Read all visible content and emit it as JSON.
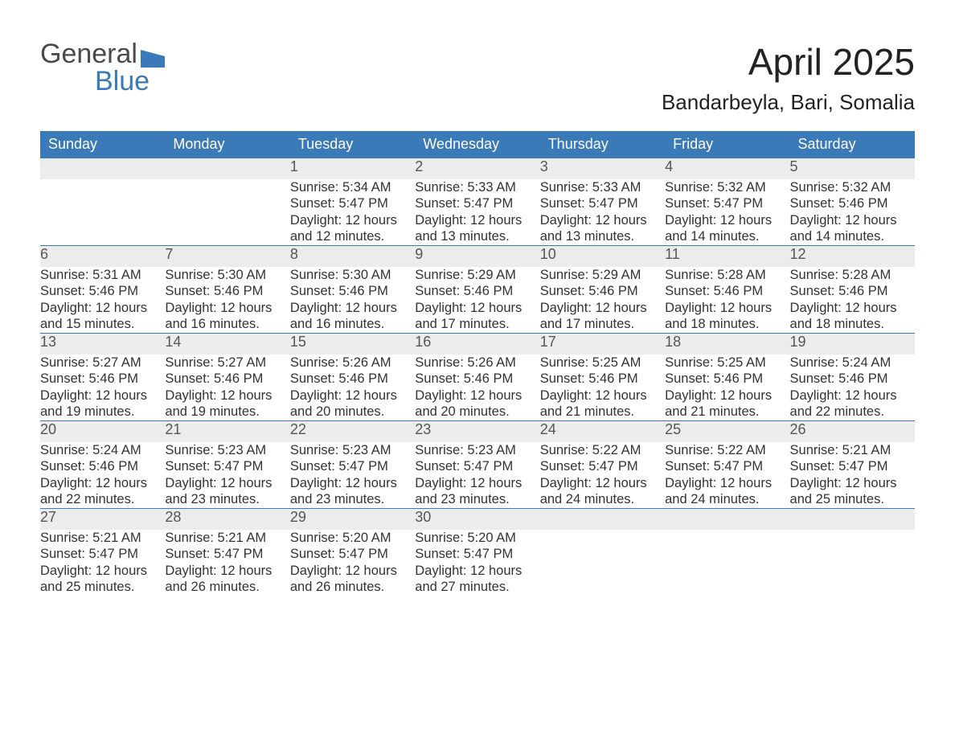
{
  "logo": {
    "word1": "General",
    "word2": "Blue",
    "accent_color": "#3a7ab8",
    "text_color": "#4a4a4a"
  },
  "title": "April 2025",
  "location": "Bandarbeyla, Bari, Somalia",
  "colors": {
    "header_bg": "#3a7ab8",
    "header_text": "#ffffff",
    "daynum_bg": "#ececec",
    "daynum_border": "#3a7ab8",
    "body_text": "#333333",
    "page_bg": "#ffffff"
  },
  "fonts": {
    "title_size_pt": 34,
    "subtitle_size_pt": 20,
    "header_size_pt": 14,
    "body_size_pt": 12
  },
  "columns": [
    "Sunday",
    "Monday",
    "Tuesday",
    "Wednesday",
    "Thursday",
    "Friday",
    "Saturday"
  ],
  "weeks": [
    [
      {
        "day": "",
        "sunrise": "",
        "sunset": "",
        "daylight": ""
      },
      {
        "day": "",
        "sunrise": "",
        "sunset": "",
        "daylight": ""
      },
      {
        "day": "1",
        "sunrise": "Sunrise: 5:34 AM",
        "sunset": "Sunset: 5:47 PM",
        "daylight": "Daylight: 12 hours and 12 minutes."
      },
      {
        "day": "2",
        "sunrise": "Sunrise: 5:33 AM",
        "sunset": "Sunset: 5:47 PM",
        "daylight": "Daylight: 12 hours and 13 minutes."
      },
      {
        "day": "3",
        "sunrise": "Sunrise: 5:33 AM",
        "sunset": "Sunset: 5:47 PM",
        "daylight": "Daylight: 12 hours and 13 minutes."
      },
      {
        "day": "4",
        "sunrise": "Sunrise: 5:32 AM",
        "sunset": "Sunset: 5:47 PM",
        "daylight": "Daylight: 12 hours and 14 minutes."
      },
      {
        "day": "5",
        "sunrise": "Sunrise: 5:32 AM",
        "sunset": "Sunset: 5:46 PM",
        "daylight": "Daylight: 12 hours and 14 minutes."
      }
    ],
    [
      {
        "day": "6",
        "sunrise": "Sunrise: 5:31 AM",
        "sunset": "Sunset: 5:46 PM",
        "daylight": "Daylight: 12 hours and 15 minutes."
      },
      {
        "day": "7",
        "sunrise": "Sunrise: 5:30 AM",
        "sunset": "Sunset: 5:46 PM",
        "daylight": "Daylight: 12 hours and 16 minutes."
      },
      {
        "day": "8",
        "sunrise": "Sunrise: 5:30 AM",
        "sunset": "Sunset: 5:46 PM",
        "daylight": "Daylight: 12 hours and 16 minutes."
      },
      {
        "day": "9",
        "sunrise": "Sunrise: 5:29 AM",
        "sunset": "Sunset: 5:46 PM",
        "daylight": "Daylight: 12 hours and 17 minutes."
      },
      {
        "day": "10",
        "sunrise": "Sunrise: 5:29 AM",
        "sunset": "Sunset: 5:46 PM",
        "daylight": "Daylight: 12 hours and 17 minutes."
      },
      {
        "day": "11",
        "sunrise": "Sunrise: 5:28 AM",
        "sunset": "Sunset: 5:46 PM",
        "daylight": "Daylight: 12 hours and 18 minutes."
      },
      {
        "day": "12",
        "sunrise": "Sunrise: 5:28 AM",
        "sunset": "Sunset: 5:46 PM",
        "daylight": "Daylight: 12 hours and 18 minutes."
      }
    ],
    [
      {
        "day": "13",
        "sunrise": "Sunrise: 5:27 AM",
        "sunset": "Sunset: 5:46 PM",
        "daylight": "Daylight: 12 hours and 19 minutes."
      },
      {
        "day": "14",
        "sunrise": "Sunrise: 5:27 AM",
        "sunset": "Sunset: 5:46 PM",
        "daylight": "Daylight: 12 hours and 19 minutes."
      },
      {
        "day": "15",
        "sunrise": "Sunrise: 5:26 AM",
        "sunset": "Sunset: 5:46 PM",
        "daylight": "Daylight: 12 hours and 20 minutes."
      },
      {
        "day": "16",
        "sunrise": "Sunrise: 5:26 AM",
        "sunset": "Sunset: 5:46 PM",
        "daylight": "Daylight: 12 hours and 20 minutes."
      },
      {
        "day": "17",
        "sunrise": "Sunrise: 5:25 AM",
        "sunset": "Sunset: 5:46 PM",
        "daylight": "Daylight: 12 hours and 21 minutes."
      },
      {
        "day": "18",
        "sunrise": "Sunrise: 5:25 AM",
        "sunset": "Sunset: 5:46 PM",
        "daylight": "Daylight: 12 hours and 21 minutes."
      },
      {
        "day": "19",
        "sunrise": "Sunrise: 5:24 AM",
        "sunset": "Sunset: 5:46 PM",
        "daylight": "Daylight: 12 hours and 22 minutes."
      }
    ],
    [
      {
        "day": "20",
        "sunrise": "Sunrise: 5:24 AM",
        "sunset": "Sunset: 5:46 PM",
        "daylight": "Daylight: 12 hours and 22 minutes."
      },
      {
        "day": "21",
        "sunrise": "Sunrise: 5:23 AM",
        "sunset": "Sunset: 5:47 PM",
        "daylight": "Daylight: 12 hours and 23 minutes."
      },
      {
        "day": "22",
        "sunrise": "Sunrise: 5:23 AM",
        "sunset": "Sunset: 5:47 PM",
        "daylight": "Daylight: 12 hours and 23 minutes."
      },
      {
        "day": "23",
        "sunrise": "Sunrise: 5:23 AM",
        "sunset": "Sunset: 5:47 PM",
        "daylight": "Daylight: 12 hours and 23 minutes."
      },
      {
        "day": "24",
        "sunrise": "Sunrise: 5:22 AM",
        "sunset": "Sunset: 5:47 PM",
        "daylight": "Daylight: 12 hours and 24 minutes."
      },
      {
        "day": "25",
        "sunrise": "Sunrise: 5:22 AM",
        "sunset": "Sunset: 5:47 PM",
        "daylight": "Daylight: 12 hours and 24 minutes."
      },
      {
        "day": "26",
        "sunrise": "Sunrise: 5:21 AM",
        "sunset": "Sunset: 5:47 PM",
        "daylight": "Daylight: 12 hours and 25 minutes."
      }
    ],
    [
      {
        "day": "27",
        "sunrise": "Sunrise: 5:21 AM",
        "sunset": "Sunset: 5:47 PM",
        "daylight": "Daylight: 12 hours and 25 minutes."
      },
      {
        "day": "28",
        "sunrise": "Sunrise: 5:21 AM",
        "sunset": "Sunset: 5:47 PM",
        "daylight": "Daylight: 12 hours and 26 minutes."
      },
      {
        "day": "29",
        "sunrise": "Sunrise: 5:20 AM",
        "sunset": "Sunset: 5:47 PM",
        "daylight": "Daylight: 12 hours and 26 minutes."
      },
      {
        "day": "30",
        "sunrise": "Sunrise: 5:20 AM",
        "sunset": "Sunset: 5:47 PM",
        "daylight": "Daylight: 12 hours and 27 minutes."
      },
      {
        "day": "",
        "sunrise": "",
        "sunset": "",
        "daylight": ""
      },
      {
        "day": "",
        "sunrise": "",
        "sunset": "",
        "daylight": ""
      },
      {
        "day": "",
        "sunrise": "",
        "sunset": "",
        "daylight": ""
      }
    ]
  ]
}
